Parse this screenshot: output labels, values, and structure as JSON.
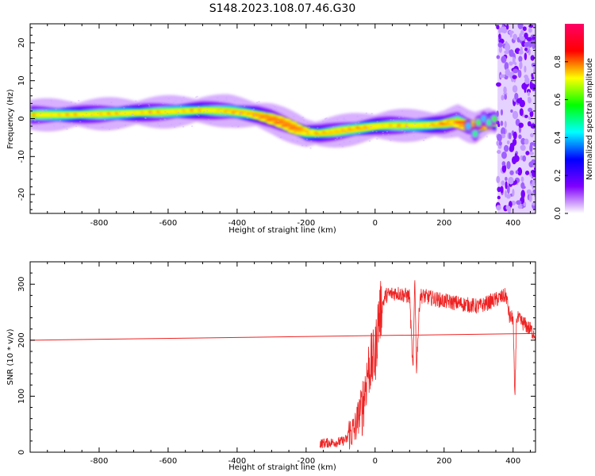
{
  "title": "S148.2023.108.07.46.G30",
  "chart_data": [
    {
      "type": "heatmap",
      "xlabel": "Height of straight line (km)",
      "ylabel": "Frequency (Hz)",
      "xlim": [
        -1000,
        465
      ],
      "ylim": [
        -25,
        25
      ],
      "xticks": [
        -800,
        -600,
        -400,
        -200,
        0,
        200,
        400
      ],
      "yticks": [
        -20,
        -10,
        0,
        10,
        20
      ],
      "colorbar": {
        "label": "Normalized spectral amplitude",
        "range": [
          0,
          1
        ],
        "ticks": [
          0.0,
          0.2,
          0.4,
          0.6,
          0.8
        ],
        "colormap": [
          "#ffffff",
          "#8000ff",
          "#0000ff",
          "#00ffff",
          "#00ff00",
          "#ffff00",
          "#ff0000",
          "#ff0066"
        ]
      },
      "ridge": {
        "x": [
          -1000,
          -900,
          -800,
          -700,
          -600,
          -500,
          -420,
          -380,
          -340,
          -300,
          -260,
          -220,
          -200,
          -160,
          -120,
          -80,
          -40,
          0,
          40,
          80,
          120,
          160,
          200,
          240,
          270,
          290,
          310,
          330,
          350
        ],
        "freq": [
          1.0,
          1.0,
          1.2,
          1.5,
          1.8,
          2.2,
          2.0,
          1.5,
          1.0,
          0.0,
          -1.5,
          -3.0,
          -3.8,
          -3.9,
          -3.5,
          -3.0,
          -2.5,
          -2.0,
          -1.8,
          -1.8,
          -1.8,
          -1.7,
          -1.5,
          -0.5,
          -2.0,
          -2.5,
          -1.5,
          -0.5,
          -1.0
        ]
      },
      "noise_region_x": [
        355,
        465
      ]
    },
    {
      "type": "line",
      "xlabel": "Height of straight line (km)",
      "ylabel": "SNR (10 * v/v)",
      "xlim": [
        -1000,
        465
      ],
      "ylim": [
        0,
        340
      ],
      "xticks": [
        -800,
        -600,
        -400,
        -200,
        0,
        200,
        400
      ],
      "yticks": [
        0,
        100,
        200,
        300
      ],
      "color": "#ee2222",
      "series": [
        {
          "x": [
            -160,
            -100,
            -60,
            -40,
            -20,
            0,
            10,
            30,
            60,
            100,
            110,
            115,
            120,
            130,
            200,
            300,
            380,
            390,
            400,
            405,
            410,
            440,
            465
          ],
          "values": [
            12,
            15,
            25,
            70,
            150,
            170,
            240,
            280,
            285,
            278,
            140,
            320,
            150,
            280,
            270,
            260,
            280,
            240,
            240,
            90,
            240,
            225,
            210
          ]
        },
        {
          "x": [
            -1000,
            465
          ],
          "values": [
            200,
            212
          ]
        }
      ]
    }
  ]
}
